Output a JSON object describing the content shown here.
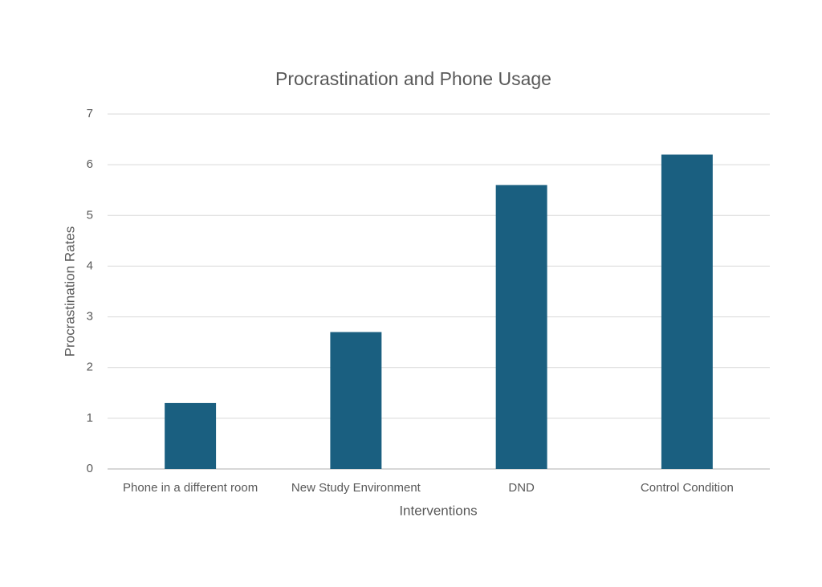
{
  "chart_data": {
    "type": "bar",
    "title": "Procrastination and Phone Usage",
    "x_label": "Interventions",
    "y_label": "Procrastination Rates",
    "categories": [
      "Phone in a different room",
      "New Study Environment",
      "DND",
      "Control Condition"
    ],
    "values": [
      1.3,
      2.7,
      5.6,
      6.2
    ],
    "color": "#1a5f80",
    "ylim": [
      0,
      7
    ],
    "yticks": [
      0,
      1,
      2,
      3,
      4,
      5,
      6,
      7
    ],
    "grid": true
  }
}
